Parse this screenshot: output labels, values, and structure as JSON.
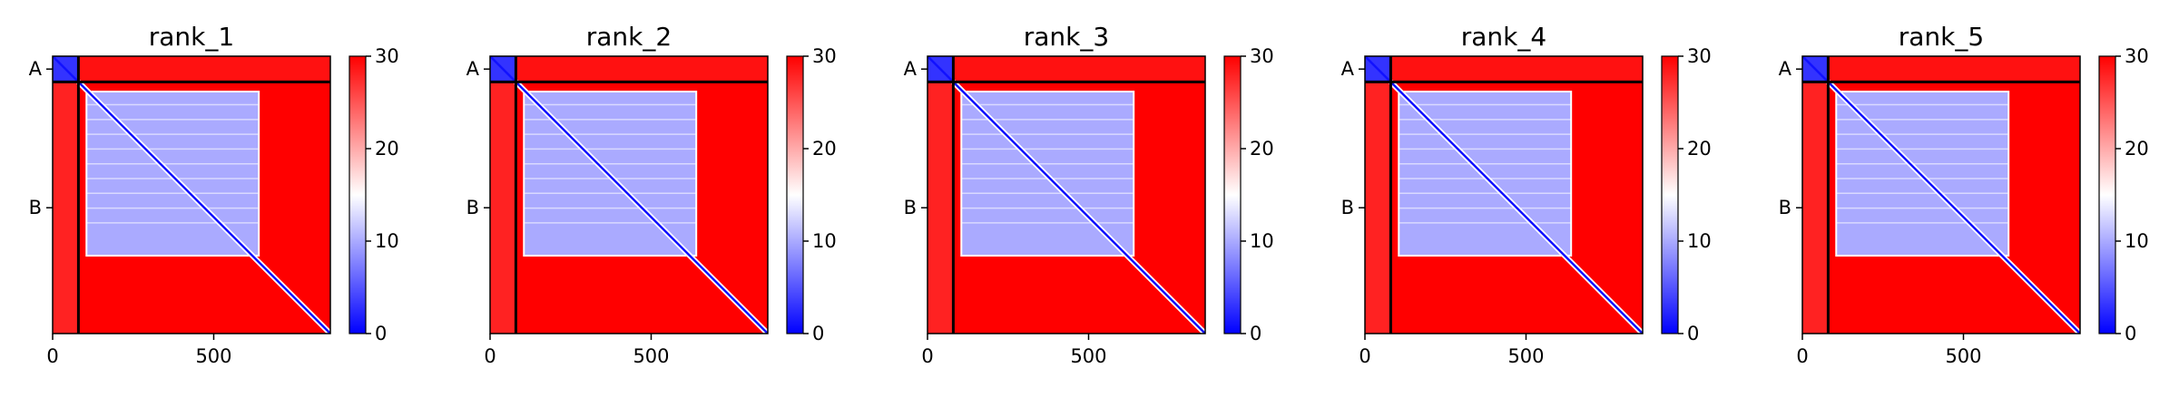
{
  "colors": {
    "low": "#0000ff",
    "mid": "#ffffff",
    "high": "#ff0000",
    "frame": "#000000",
    "background": "#ffffff"
  },
  "chart_data": [
    {
      "type": "heatmap",
      "title": "rank_1",
      "xlim": [
        0,
        862
      ],
      "ylim": [
        862,
        0
      ],
      "x_ticks": [
        {
          "value": 0,
          "label": "0"
        },
        {
          "value": 500,
          "label": "500"
        }
      ],
      "y_ticks": [
        {
          "value": 40,
          "label": "A"
        },
        {
          "value": 471,
          "label": "B"
        }
      ],
      "chain_boundary": 80,
      "colorbar": {
        "vmin": 0,
        "vmax": 30,
        "cmap": "bwr",
        "ticks": [
          0,
          10,
          20,
          30
        ]
      },
      "regions": [
        {
          "x": [
            0,
            80
          ],
          "y": [
            0,
            80
          ],
          "value": 3
        },
        {
          "x": [
            80,
            862
          ],
          "y": [
            0,
            80
          ],
          "value": 29
        },
        {
          "x": [
            0,
            80
          ],
          "y": [
            80,
            862
          ],
          "value": 28
        },
        {
          "x": [
            80,
            862
          ],
          "y": [
            80,
            862
          ],
          "value": 30
        },
        {
          "x": [
            105,
            640
          ],
          "y": [
            110,
            620
          ],
          "value": 10
        },
        {
          "x": [
            80,
            640
          ],
          "y": [
            80,
            640
          ],
          "value": 3,
          "diagonal_band": true
        }
      ]
    },
    {
      "type": "heatmap",
      "title": "rank_2",
      "xlim": [
        0,
        862
      ],
      "ylim": [
        862,
        0
      ],
      "x_ticks": [
        {
          "value": 0,
          "label": "0"
        },
        {
          "value": 500,
          "label": "500"
        }
      ],
      "y_ticks": [
        {
          "value": 40,
          "label": "A"
        },
        {
          "value": 471,
          "label": "B"
        }
      ],
      "chain_boundary": 80,
      "colorbar": {
        "vmin": 0,
        "vmax": 30,
        "cmap": "bwr",
        "ticks": [
          0,
          10,
          20,
          30
        ]
      },
      "regions": [
        {
          "x": [
            0,
            80
          ],
          "y": [
            0,
            80
          ],
          "value": 3
        },
        {
          "x": [
            80,
            862
          ],
          "y": [
            0,
            80
          ],
          "value": 29
        },
        {
          "x": [
            0,
            80
          ],
          "y": [
            80,
            862
          ],
          "value": 28
        },
        {
          "x": [
            80,
            862
          ],
          "y": [
            80,
            862
          ],
          "value": 30
        },
        {
          "x": [
            105,
            640
          ],
          "y": [
            110,
            620
          ],
          "value": 10
        },
        {
          "x": [
            80,
            640
          ],
          "y": [
            80,
            640
          ],
          "value": 3,
          "diagonal_band": true
        }
      ]
    },
    {
      "type": "heatmap",
      "title": "rank_3",
      "xlim": [
        0,
        862
      ],
      "ylim": [
        862,
        0
      ],
      "x_ticks": [
        {
          "value": 0,
          "label": "0"
        },
        {
          "value": 500,
          "label": "500"
        }
      ],
      "y_ticks": [
        {
          "value": 40,
          "label": "A"
        },
        {
          "value": 471,
          "label": "B"
        }
      ],
      "chain_boundary": 80,
      "colorbar": {
        "vmin": 0,
        "vmax": 30,
        "cmap": "bwr",
        "ticks": [
          0,
          10,
          20,
          30
        ]
      },
      "regions": [
        {
          "x": [
            0,
            80
          ],
          "y": [
            0,
            80
          ],
          "value": 3
        },
        {
          "x": [
            80,
            862
          ],
          "y": [
            0,
            80
          ],
          "value": 29
        },
        {
          "x": [
            0,
            80
          ],
          "y": [
            80,
            862
          ],
          "value": 28
        },
        {
          "x": [
            80,
            862
          ],
          "y": [
            80,
            862
          ],
          "value": 30
        },
        {
          "x": [
            105,
            640
          ],
          "y": [
            110,
            620
          ],
          "value": 10
        },
        {
          "x": [
            80,
            640
          ],
          "y": [
            80,
            640
          ],
          "value": 3,
          "diagonal_band": true
        }
      ]
    },
    {
      "type": "heatmap",
      "title": "rank_4",
      "xlim": [
        0,
        862
      ],
      "ylim": [
        862,
        0
      ],
      "x_ticks": [
        {
          "value": 0,
          "label": "0"
        },
        {
          "value": 500,
          "label": "500"
        }
      ],
      "y_ticks": [
        {
          "value": 40,
          "label": "A"
        },
        {
          "value": 471,
          "label": "B"
        }
      ],
      "chain_boundary": 80,
      "colorbar": {
        "vmin": 0,
        "vmax": 30,
        "cmap": "bwr",
        "ticks": [
          0,
          10,
          20,
          30
        ]
      },
      "regions": [
        {
          "x": [
            0,
            80
          ],
          "y": [
            0,
            80
          ],
          "value": 3
        },
        {
          "x": [
            80,
            862
          ],
          "y": [
            0,
            80
          ],
          "value": 29
        },
        {
          "x": [
            0,
            80
          ],
          "y": [
            80,
            862
          ],
          "value": 28
        },
        {
          "x": [
            80,
            862
          ],
          "y": [
            80,
            862
          ],
          "value": 30
        },
        {
          "x": [
            105,
            640
          ],
          "y": [
            110,
            620
          ],
          "value": 10
        },
        {
          "x": [
            80,
            640
          ],
          "y": [
            80,
            640
          ],
          "value": 3,
          "diagonal_band": true
        }
      ]
    },
    {
      "type": "heatmap",
      "title": "rank_5",
      "xlim": [
        0,
        862
      ],
      "ylim": [
        862,
        0
      ],
      "x_ticks": [
        {
          "value": 0,
          "label": "0"
        },
        {
          "value": 500,
          "label": "500"
        }
      ],
      "y_ticks": [
        {
          "value": 40,
          "label": "A"
        },
        {
          "value": 471,
          "label": "B"
        }
      ],
      "chain_boundary": 80,
      "colorbar": {
        "vmin": 0,
        "vmax": 30,
        "cmap": "bwr",
        "ticks": [
          0,
          10,
          20,
          30
        ]
      },
      "regions": [
        {
          "x": [
            0,
            80
          ],
          "y": [
            0,
            80
          ],
          "value": 3
        },
        {
          "x": [
            80,
            862
          ],
          "y": [
            0,
            80
          ],
          "value": 29
        },
        {
          "x": [
            0,
            80
          ],
          "y": [
            80,
            862
          ],
          "value": 28
        },
        {
          "x": [
            80,
            862
          ],
          "y": [
            80,
            862
          ],
          "value": 30
        },
        {
          "x": [
            105,
            640
          ],
          "y": [
            110,
            620
          ],
          "value": 10
        },
        {
          "x": [
            80,
            640
          ],
          "y": [
            80,
            640
          ],
          "value": 3,
          "diagonal_band": true
        }
      ]
    }
  ]
}
